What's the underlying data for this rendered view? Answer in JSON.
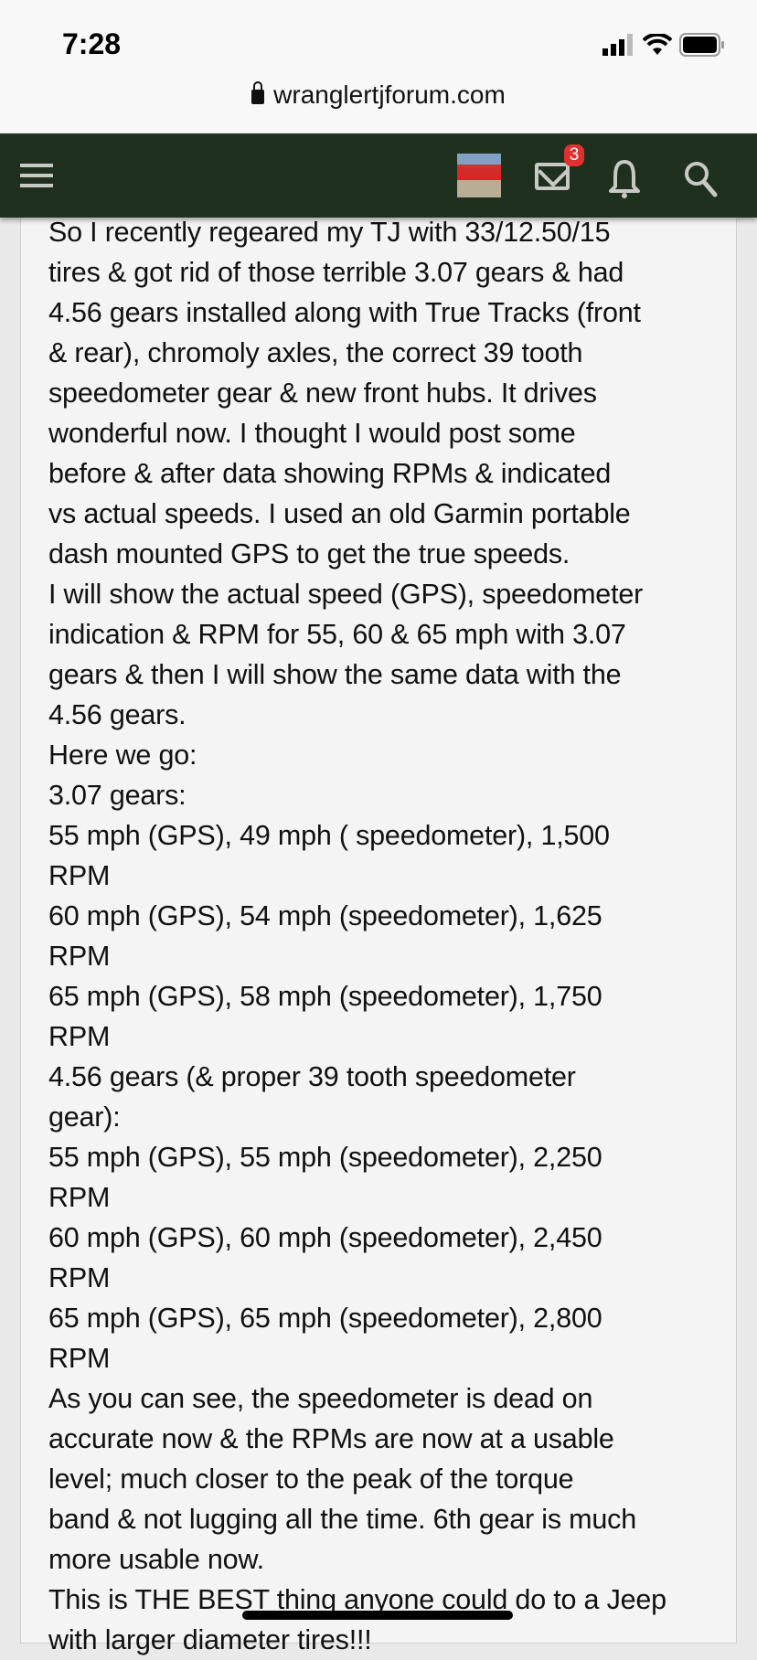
{
  "status_bar": {
    "time": "7:28",
    "icons": [
      "cellular-signal-icon",
      "wifi-icon",
      "battery-icon"
    ]
  },
  "browser": {
    "url": "wranglertjforum.com",
    "icon": "lock-icon"
  },
  "nav": {
    "mail_badge": "3",
    "bg_color": "#1f301f",
    "badge_color": "#e03030"
  },
  "post": {
    "lines": [
      "So I recently regeared my TJ with 33/12.50/15",
      "tires & got rid of those terrible 3.07 gears & had",
      "4.56 gears installed along with True Tracks (front",
      "& rear), chromoly axles, the correct 39 tooth",
      "speedometer gear & new front hubs. It drives",
      "wonderful now. I thought I would post some",
      "before & after data showing RPMs & indicated",
      "vs actual speeds. I used an old Garmin portable",
      "dash mounted GPS to get the true speeds.",
      "I will show the actual speed (GPS), speedometer",
      "indication & RPM for 55, 60 & 65 mph with 3.07",
      "gears & then I will show the same data with the",
      "4.56 gears.",
      "Here we go:",
      "3.07 gears:",
      "55 mph (GPS), 49 mph ( speedometer), 1,500",
      "RPM",
      "60 mph (GPS), 54 mph (speedometer), 1,625",
      "RPM",
      "65 mph (GPS), 58 mph (speedometer), 1,750",
      "RPM",
      "4.56 gears (& proper 39 tooth speedometer",
      "gear):",
      "55 mph (GPS), 55 mph (speedometer), 2,250",
      "RPM",
      "60 mph (GPS), 60 mph (speedometer), 2,450",
      "RPM",
      "65 mph (GPS), 65 mph (speedometer), 2,800",
      "RPM",
      "As you can see, the speedometer is dead on",
      "accurate now & the RPMs are now at a usable",
      "level; much closer to the peak of the torque",
      "band & not lugging all the time. 6th gear is much",
      "more usable now.",
      "This is THE BEST thing anyone could do to a Jeep",
      "with larger diameter tires!!!"
    ]
  }
}
